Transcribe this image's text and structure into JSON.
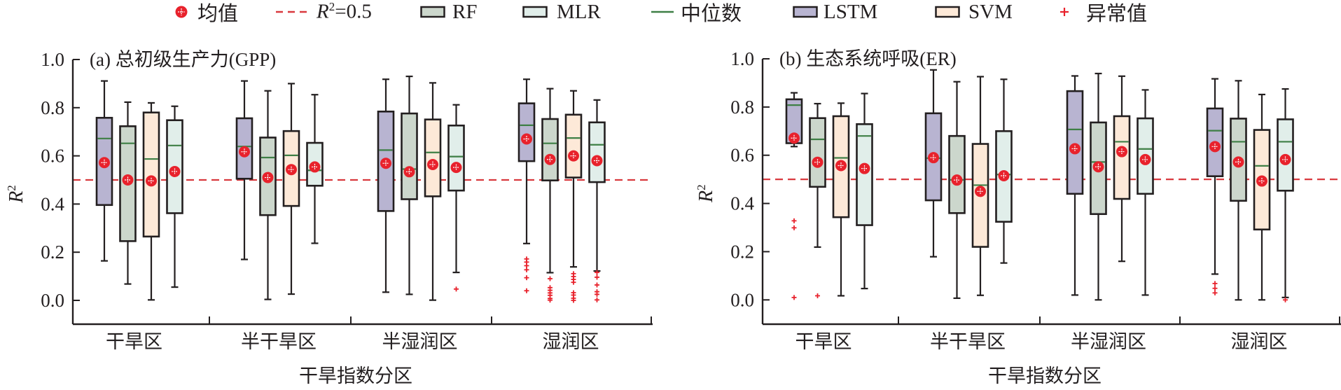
{
  "legend": {
    "mean": "均值",
    "ref_line_prefix": "R",
    "ref_line_sup": "2",
    "ref_line_suffix": "=0.5",
    "rf": "RF",
    "mlr": "MLR",
    "median": "中位数",
    "lstm": "LSTM",
    "svm": "SVM",
    "outlier": "异常值"
  },
  "colors": {
    "LSTM": "#b8b4d1",
    "RF": "#ccd7cc",
    "SVM": "#fde9d8",
    "MLR": "#e1eeea",
    "median": "#3e7f45",
    "mean": "#e8222c",
    "ref_line": "#d9393e",
    "outlier": "#e8222c",
    "axis": "#231f20"
  },
  "chart_data": [
    {
      "type": "box",
      "title": "(a) 总初级生产力(GPP)",
      "xlabel": "干旱指数分区",
      "ylabel": "R2",
      "ylim": [
        -0.15,
        1.0
      ],
      "yticks": [
        "0.0",
        "0.2",
        "0.4",
        "0.6",
        "0.8",
        "1.0"
      ],
      "ytick_values": [
        0.0,
        0.2,
        0.4,
        0.6,
        0.8,
        1.0
      ],
      "reference_line": 0.5,
      "categories": [
        "干旱区",
        "半干旱区",
        "半湿润区",
        "湿润区"
      ],
      "series_order": [
        "LSTM",
        "RF",
        "SVM",
        "MLR"
      ],
      "boxes": [
        [
          {
            "model": "LSTM",
            "whisker_low": 0.164,
            "q1": 0.396,
            "median": 0.672,
            "q3": 0.758,
            "whisker_high": 0.911,
            "mean": 0.572,
            "outliers": []
          },
          {
            "model": "RF",
            "whisker_low": 0.068,
            "q1": 0.246,
            "median": 0.652,
            "q3": 0.723,
            "whisker_high": 0.823,
            "mean": 0.5,
            "outliers": []
          },
          {
            "model": "SVM",
            "whisker_low": 0.002,
            "q1": 0.265,
            "median": 0.587,
            "q3": 0.78,
            "whisker_high": 0.82,
            "mean": 0.496,
            "outliers": []
          },
          {
            "model": "MLR",
            "whisker_low": 0.055,
            "q1": 0.362,
            "median": 0.643,
            "q3": 0.748,
            "whisker_high": 0.806,
            "mean": 0.535,
            "outliers": []
          }
        ],
        [
          {
            "model": "LSTM",
            "whisker_low": 0.17,
            "q1": 0.505,
            "median": 0.639,
            "q3": 0.756,
            "whisker_high": 0.911,
            "mean": 0.617,
            "outliers": []
          },
          {
            "model": "RF",
            "whisker_low": 0.004,
            "q1": 0.354,
            "median": 0.593,
            "q3": 0.676,
            "whisker_high": 0.87,
            "mean": 0.51,
            "outliers": []
          },
          {
            "model": "SVM",
            "whisker_low": 0.026,
            "q1": 0.392,
            "median": 0.602,
            "q3": 0.703,
            "whisker_high": 0.9,
            "mean": 0.543,
            "outliers": []
          },
          {
            "model": "MLR",
            "whisker_low": 0.237,
            "q1": 0.476,
            "median": 0.54,
            "q3": 0.654,
            "whisker_high": 0.854,
            "mean": 0.554,
            "outliers": []
          }
        ],
        [
          {
            "model": "LSTM",
            "whisker_low": 0.034,
            "q1": 0.371,
            "median": 0.624,
            "q3": 0.784,
            "whisker_high": 0.918,
            "mean": 0.569,
            "outliers": []
          },
          {
            "model": "RF",
            "whisker_low": 0.025,
            "q1": 0.42,
            "median": 0.545,
            "q3": 0.776,
            "whisker_high": 0.93,
            "mean": 0.534,
            "outliers": []
          },
          {
            "model": "SVM",
            "whisker_low": 0.001,
            "q1": 0.432,
            "median": 0.614,
            "q3": 0.751,
            "whisker_high": 0.903,
            "mean": 0.564,
            "outliers": []
          },
          {
            "model": "MLR",
            "whisker_low": 0.116,
            "q1": 0.456,
            "median": 0.597,
            "q3": 0.726,
            "whisker_high": 0.812,
            "mean": 0.552,
            "outliers": [
              0.047
            ]
          }
        ],
        [
          {
            "model": "LSTM",
            "whisker_low": 0.236,
            "q1": 0.578,
            "median": 0.727,
            "q3": 0.818,
            "whisker_high": 0.918,
            "mean": 0.67,
            "outliers": [
              0.172,
              0.159,
              0.144,
              0.127,
              0.094,
              0.04
            ]
          },
          {
            "model": "RF",
            "whisker_low": 0.115,
            "q1": 0.498,
            "median": 0.652,
            "q3": 0.753,
            "whisker_high": 0.879,
            "mean": 0.585,
            "outliers": [
              0.09,
              0.053,
              0.042,
              0.031,
              0.021,
              0.008,
              0.001
            ]
          },
          {
            "model": "SVM",
            "whisker_low": 0.139,
            "q1": 0.51,
            "median": 0.674,
            "q3": 0.771,
            "whisker_high": 0.87,
            "mean": 0.6,
            "outliers": [
              0.111,
              0.099,
              0.087,
              0.075,
              0.032,
              0.022,
              0.009,
              0.0
            ]
          },
          {
            "model": "MLR",
            "whisker_low": 0.122,
            "q1": 0.491,
            "median": 0.646,
            "q3": 0.739,
            "whisker_high": 0.832,
            "mean": 0.58,
            "outliers": [
              0.116,
              0.096,
              0.064,
              0.036,
              0.025,
              0.002
            ]
          }
        ]
      ]
    },
    {
      "type": "box",
      "title": "(b) 生态系统呼吸(ER)",
      "xlabel": "干旱指数分区",
      "ylabel": "R2",
      "ylim": [
        -0.15,
        1.0
      ],
      "yticks": [
        "0.0",
        "0.2",
        "0.4",
        "0.6",
        "0.8",
        "1.0"
      ],
      "ytick_values": [
        0.0,
        0.2,
        0.4,
        0.6,
        0.8,
        1.0
      ],
      "reference_line": 0.5,
      "categories": [
        "干旱区",
        "半干旱区",
        "半湿润区",
        "湿润区"
      ],
      "series_order": [
        "LSTM",
        "RF",
        "SVM",
        "MLR"
      ],
      "boxes": [
        [
          {
            "model": "LSTM",
            "whisker_low": 0.636,
            "q1": 0.65,
            "median": 0.808,
            "q3": 0.832,
            "whisker_high": 0.859,
            "mean": 0.671,
            "outliers": [
              0.328,
              0.299,
              0.01
            ]
          },
          {
            "model": "RF",
            "whisker_low": 0.219,
            "q1": 0.469,
            "median": 0.666,
            "q3": 0.754,
            "whisker_high": 0.814,
            "mean": 0.571,
            "outliers": [
              0.017
            ]
          },
          {
            "model": "SVM",
            "whisker_low": 0.017,
            "q1": 0.343,
            "median": 0.589,
            "q3": 0.762,
            "whisker_high": 0.816,
            "mean": 0.557,
            "outliers": []
          },
          {
            "model": "MLR",
            "whisker_low": 0.047,
            "q1": 0.31,
            "median": 0.68,
            "q3": 0.729,
            "whisker_high": 0.856,
            "mean": 0.545,
            "outliers": []
          }
        ],
        [
          {
            "model": "LSTM",
            "whisker_low": 0.179,
            "q1": 0.413,
            "median": 0.588,
            "q3": 0.774,
            "whisker_high": 0.954,
            "mean": 0.59,
            "outliers": []
          },
          {
            "model": "RF",
            "whisker_low": 0.007,
            "q1": 0.36,
            "median": 0.498,
            "q3": 0.68,
            "whisker_high": 0.905,
            "mean": 0.497,
            "outliers": []
          },
          {
            "model": "SVM",
            "whisker_low": 0.019,
            "q1": 0.22,
            "median": 0.476,
            "q3": 0.647,
            "whisker_high": 0.926,
            "mean": 0.45,
            "outliers": []
          },
          {
            "model": "MLR",
            "whisker_low": 0.153,
            "q1": 0.324,
            "median": 0.52,
            "q3": 0.7,
            "whisker_high": 0.915,
            "mean": 0.515,
            "outliers": []
          }
        ],
        [
          {
            "model": "LSTM",
            "whisker_low": 0.02,
            "q1": 0.44,
            "median": 0.707,
            "q3": 0.866,
            "whisker_high": 0.929,
            "mean": 0.627,
            "outliers": []
          },
          {
            "model": "RF",
            "whisker_low": 0.0,
            "q1": 0.356,
            "median": 0.572,
            "q3": 0.736,
            "whisker_high": 0.939,
            "mean": 0.552,
            "outliers": []
          },
          {
            "model": "SVM",
            "whisker_low": 0.16,
            "q1": 0.419,
            "median": 0.656,
            "q3": 0.762,
            "whisker_high": 0.928,
            "mean": 0.615,
            "outliers": []
          },
          {
            "model": "MLR",
            "whisker_low": 0.02,
            "q1": 0.44,
            "median": 0.626,
            "q3": 0.753,
            "whisker_high": 0.871,
            "mean": 0.582,
            "outliers": []
          }
        ],
        [
          {
            "model": "LSTM",
            "whisker_low": 0.107,
            "q1": 0.513,
            "median": 0.702,
            "q3": 0.794,
            "whisker_high": 0.917,
            "mean": 0.636,
            "outliers": [
              0.068,
              0.048,
              0.029
            ]
          },
          {
            "model": "RF",
            "whisker_low": 0.0,
            "q1": 0.411,
            "median": 0.656,
            "q3": 0.752,
            "whisker_high": 0.909,
            "mean": 0.572,
            "outliers": []
          },
          {
            "model": "SVM",
            "whisker_low": 0.0,
            "q1": 0.292,
            "median": 0.556,
            "q3": 0.705,
            "whisker_high": 0.852,
            "mean": 0.493,
            "outliers": []
          },
          {
            "model": "MLR",
            "whisker_low": 0.01,
            "q1": 0.453,
            "median": 0.656,
            "q3": 0.749,
            "whisker_high": 0.875,
            "mean": 0.582,
            "outliers": [
              0.0
            ]
          }
        ]
      ]
    }
  ]
}
